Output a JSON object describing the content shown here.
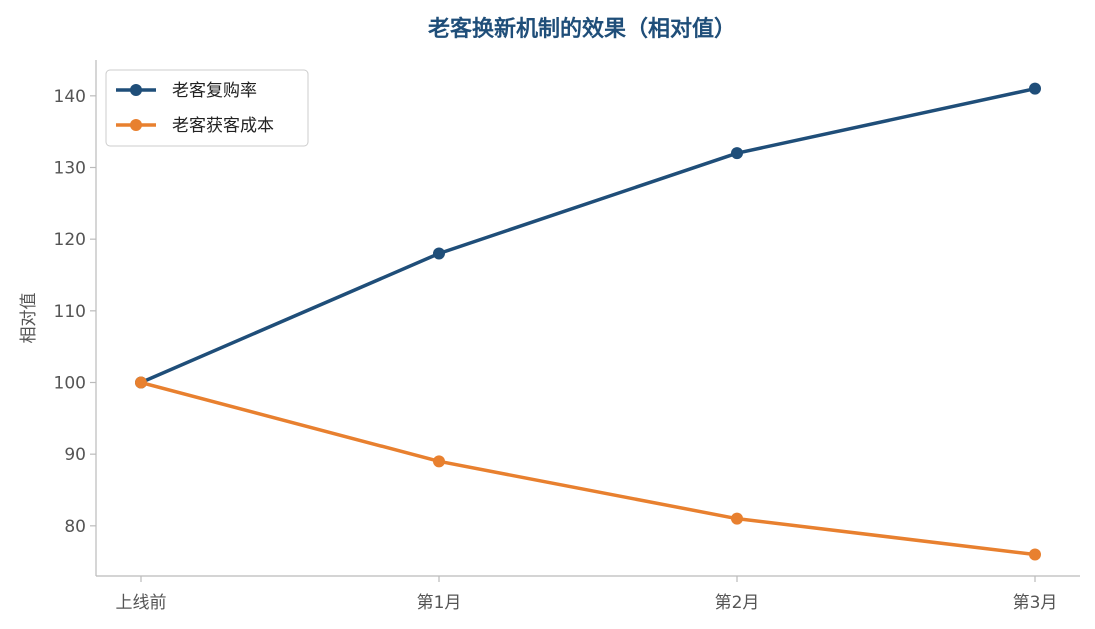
{
  "chart_data": {
    "type": "line",
    "title": "老客换新机制的效果（相对值）",
    "xlabel": "",
    "ylabel": "相对值",
    "categories": [
      "上线前",
      "第1月",
      "第2月",
      "第3月"
    ],
    "yticks": [
      80,
      90,
      100,
      110,
      120,
      130,
      140
    ],
    "ylim": [
      73,
      145
    ],
    "grid": false,
    "legend_position": "top-left",
    "series": [
      {
        "name": "老客复购率",
        "values": [
          100,
          118,
          132,
          141
        ],
        "color": "#1f4e79"
      },
      {
        "name": "老客获客成本",
        "values": [
          100,
          89,
          81,
          76
        ],
        "color": "#e8802f"
      }
    ],
    "title_color": "#1f4e79"
  }
}
